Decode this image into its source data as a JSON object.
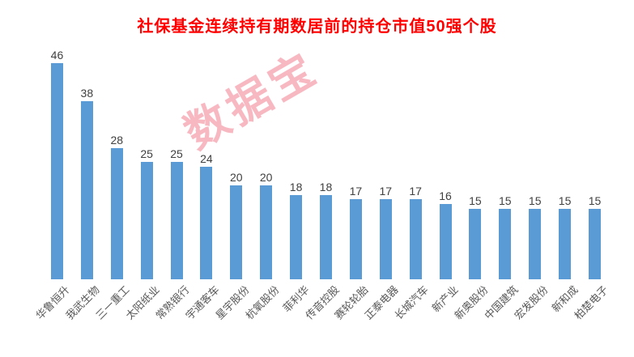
{
  "chart_data": {
    "type": "bar",
    "title": "社保基金连续持有期数居前的持仓市值50强个股",
    "categories": [
      "华鲁恒升",
      "我武生物",
      "三一重工",
      "太阳纸业",
      "常熟银行",
      "宇通客车",
      "星宇股份",
      "杭氧股份",
      "菲利华",
      "传音控股",
      "赛轮轮胎",
      "正泰电器",
      "长城汽车",
      "新产业",
      "新奥股份",
      "中国建筑",
      "宏发股份",
      "新和成",
      "柏楚电子"
    ],
    "values": [
      46,
      38,
      28,
      25,
      25,
      24,
      20,
      20,
      18,
      18,
      17,
      17,
      17,
      16,
      15,
      15,
      15,
      15,
      15
    ],
    "xlabel": "",
    "ylabel": "",
    "ylim": [
      0,
      50
    ],
    "grid": false,
    "legend": false,
    "bar_color": "#5B9BD5",
    "title_color": "#FF0000",
    "value_label_color": "#404040",
    "tick_label_color": "#595959"
  },
  "watermark": {
    "text": "数据宝",
    "color": "#F0647A"
  }
}
